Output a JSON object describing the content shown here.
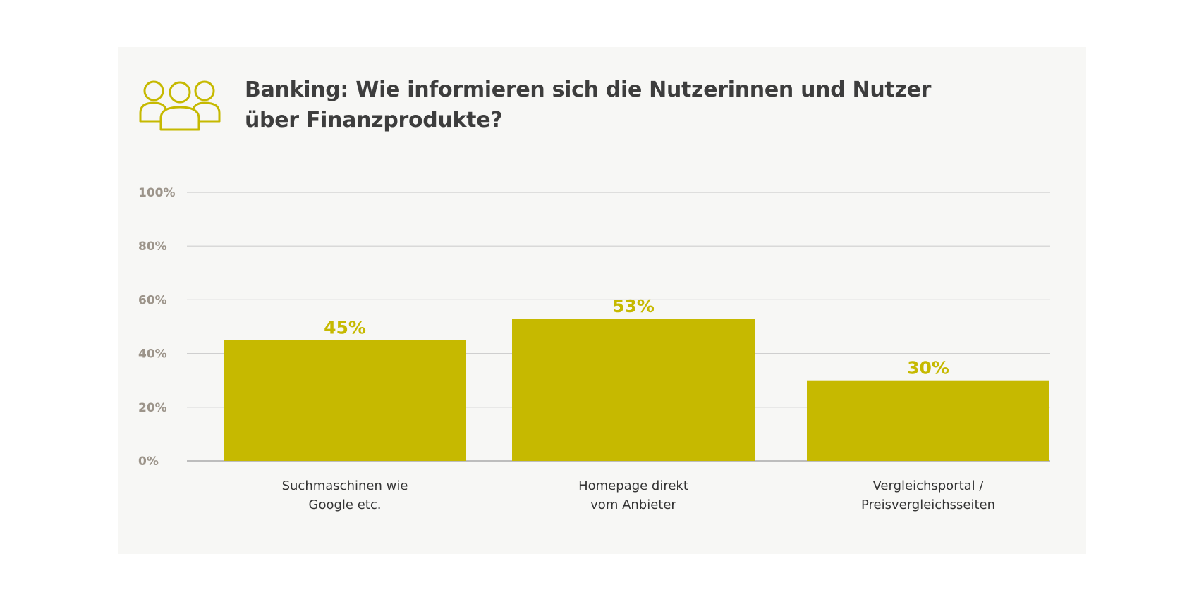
{
  "chart_data": {
    "type": "bar",
    "title": "Banking: Wie informieren sich die Nutzerinnen und Nutzer über Finanzprodukte?",
    "categories": [
      [
        "Suchmaschinen wie",
        "Google etc."
      ],
      [
        "Homepage direkt",
        "vom Anbieter"
      ],
      [
        "Vergleichsportal /",
        "Preisvergleichsseiten"
      ]
    ],
    "values": [
      45,
      53,
      30
    ],
    "value_labels": [
      "45%",
      "53%",
      "30%"
    ],
    "ylim": [
      0,
      100
    ],
    "yticks": [
      0,
      20,
      40,
      60,
      80,
      100
    ],
    "ytick_labels": [
      "0%",
      "20%",
      "40%",
      "60%",
      "80%",
      "100%"
    ],
    "grid": true,
    "legend": "none"
  },
  "colors": {
    "bar": "#c6b900",
    "value_label": "#c6b900",
    "icon": "#c6b900",
    "grid": "#cfcfcf",
    "axis": "#bdbdbd",
    "tick_label": "#9c948a",
    "title": "#3d3d3d",
    "background": "#f7f7f5"
  },
  "icon": "people-group-icon"
}
